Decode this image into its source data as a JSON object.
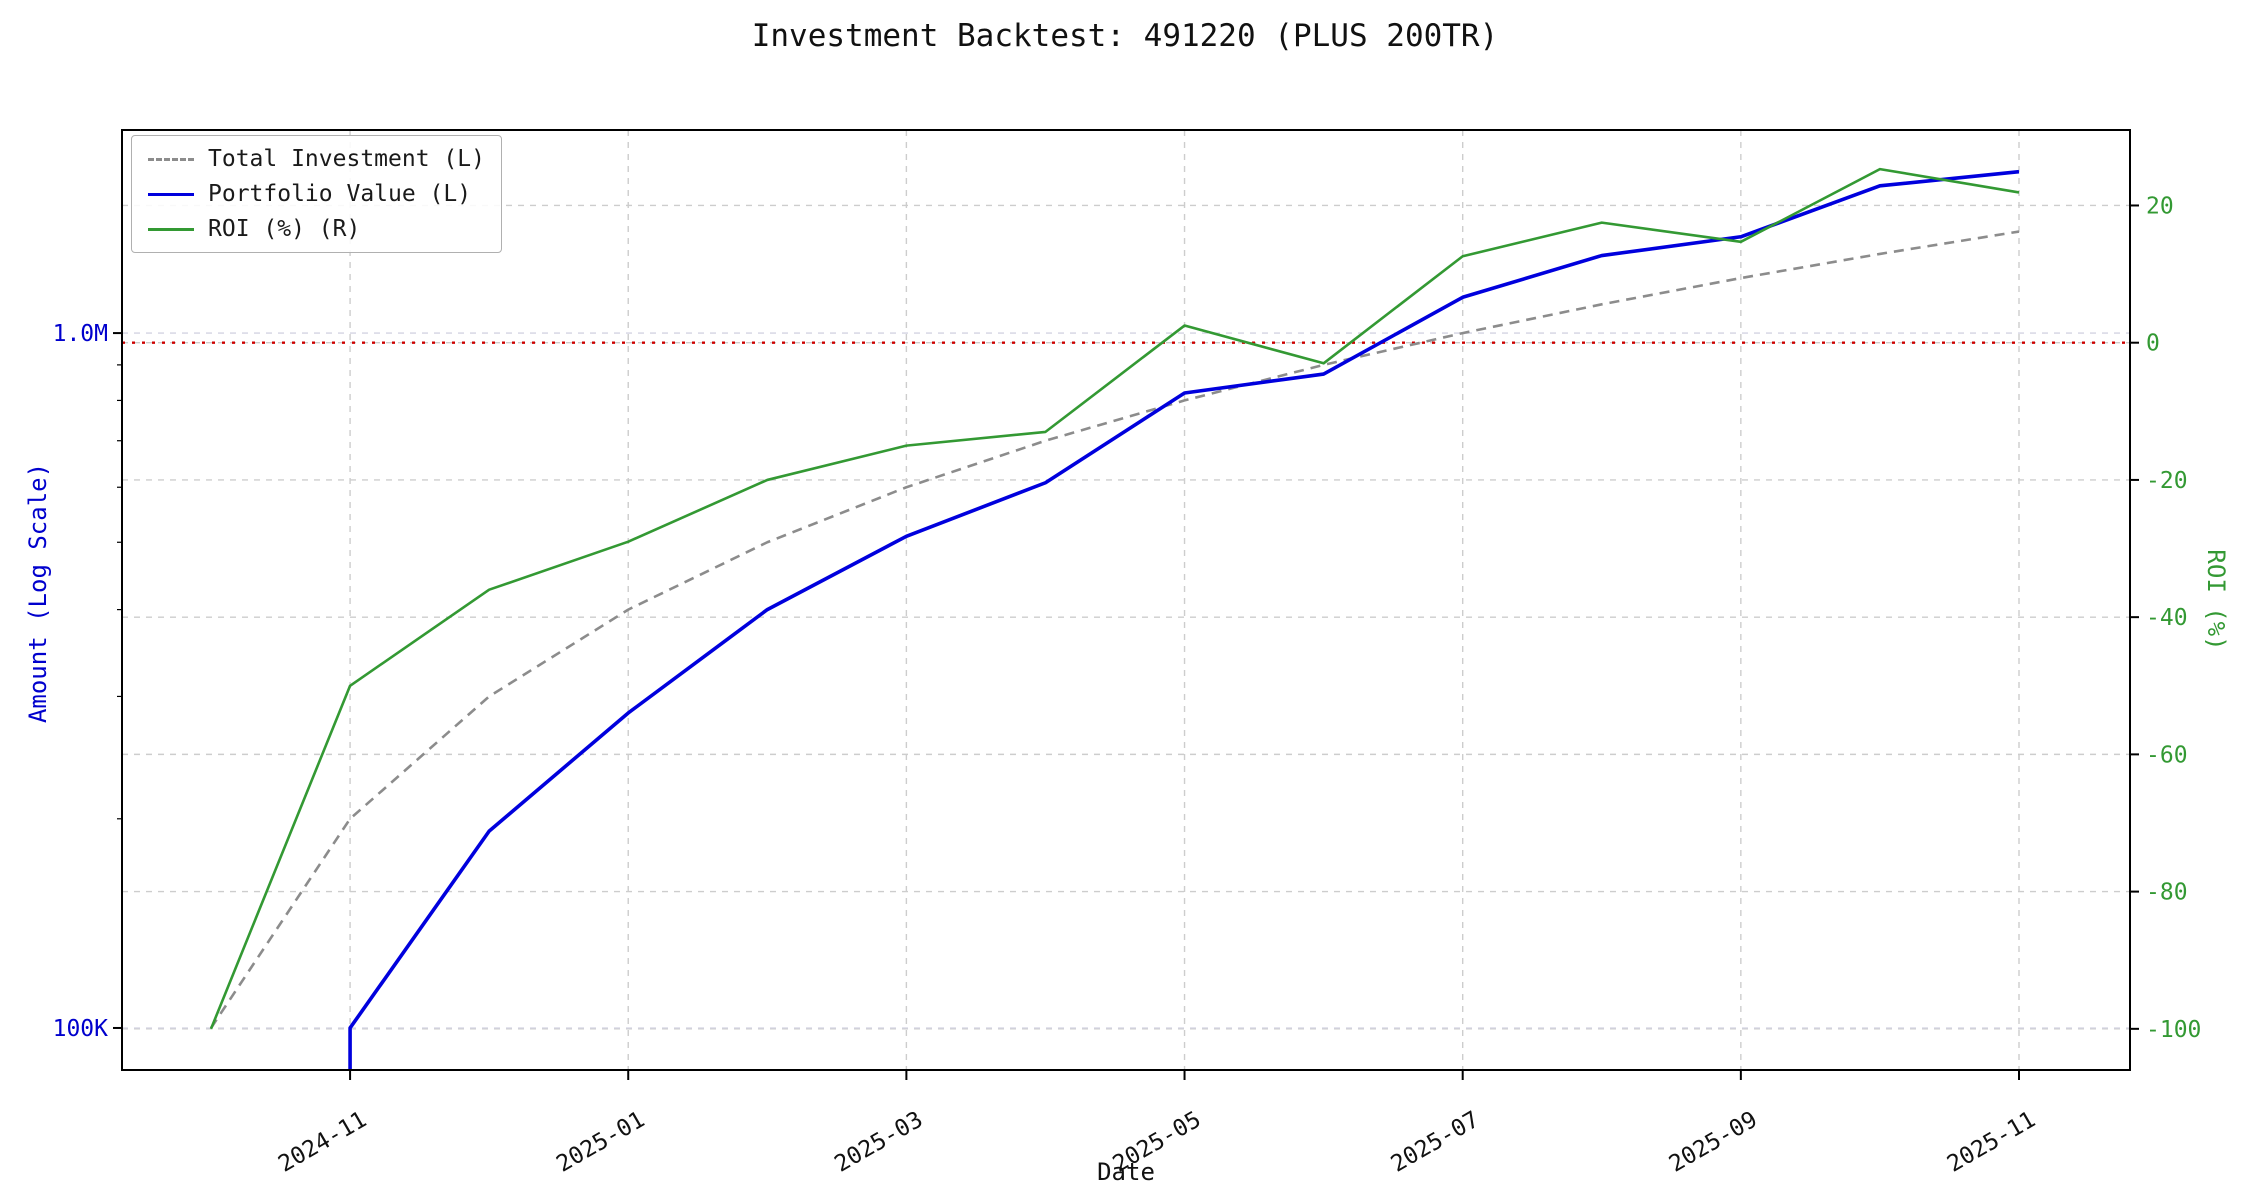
{
  "chart_data": {
    "type": "line",
    "title": "Investment Backtest: 491220 (PLUS 200TR)",
    "xlabel": "Date",
    "ylabel_left": "Amount (Log Scale)",
    "ylabel_right": "ROI (%)",
    "x": [
      "2024-10",
      "2024-11",
      "2024-12",
      "2025-01",
      "2025-02",
      "2025-03",
      "2025-04",
      "2025-05",
      "2025-06",
      "2025-07",
      "2025-08",
      "2025-09",
      "2025-10",
      "2025-11"
    ],
    "x_ticks": [
      "2024-11",
      "2025-01",
      "2025-03",
      "2025-05",
      "2025-07",
      "2025-09",
      "2025-11"
    ],
    "left_axis": {
      "scale": "log",
      "color": "#0000cd",
      "range": [
        87000,
        1960000
      ],
      "ticks": [
        {
          "label": "1.0M",
          "value": 1000000
        },
        {
          "label": "100K",
          "value": 100000
        }
      ]
    },
    "right_axis": {
      "color": "#339933",
      "range": [
        -106,
        31
      ],
      "ticks": [
        20,
        0,
        -20,
        -40,
        -60,
        -80,
        -100
      ]
    },
    "grid": true,
    "legend_position": "upper-left",
    "series": [
      {
        "name": "Total Investment (L)",
        "axis": "left",
        "color": "#8c8c8c",
        "style": "dashed",
        "values": [
          100000,
          200000,
          300000,
          400000,
          500000,
          600000,
          700000,
          800000,
          900000,
          1000000,
          1100000,
          1200000,
          1300000,
          1400000
        ]
      },
      {
        "name": "Portfolio Value (L)",
        "axis": "left",
        "color": "#0000dd",
        "style": "solid",
        "clip_from_bottom": true,
        "values": [
          null,
          100000,
          192000,
          284000,
          400000,
          510000,
          609000,
          820000,
          873000,
          1126000,
          1293000,
          1376000,
          1629000,
          1707000
        ]
      },
      {
        "name": "ROI (%) (R)",
        "axis": "right",
        "color": "#339933",
        "style": "solid",
        "values": [
          -100,
          -50,
          -36,
          -29,
          -20,
          -15,
          -13,
          2.5,
          -3,
          12.6,
          17.5,
          14.7,
          25.3,
          21.9
        ]
      }
    ],
    "reference_line": {
      "axis": "right",
      "value": 0,
      "color": "#cc0000",
      "style": "dotted"
    }
  }
}
